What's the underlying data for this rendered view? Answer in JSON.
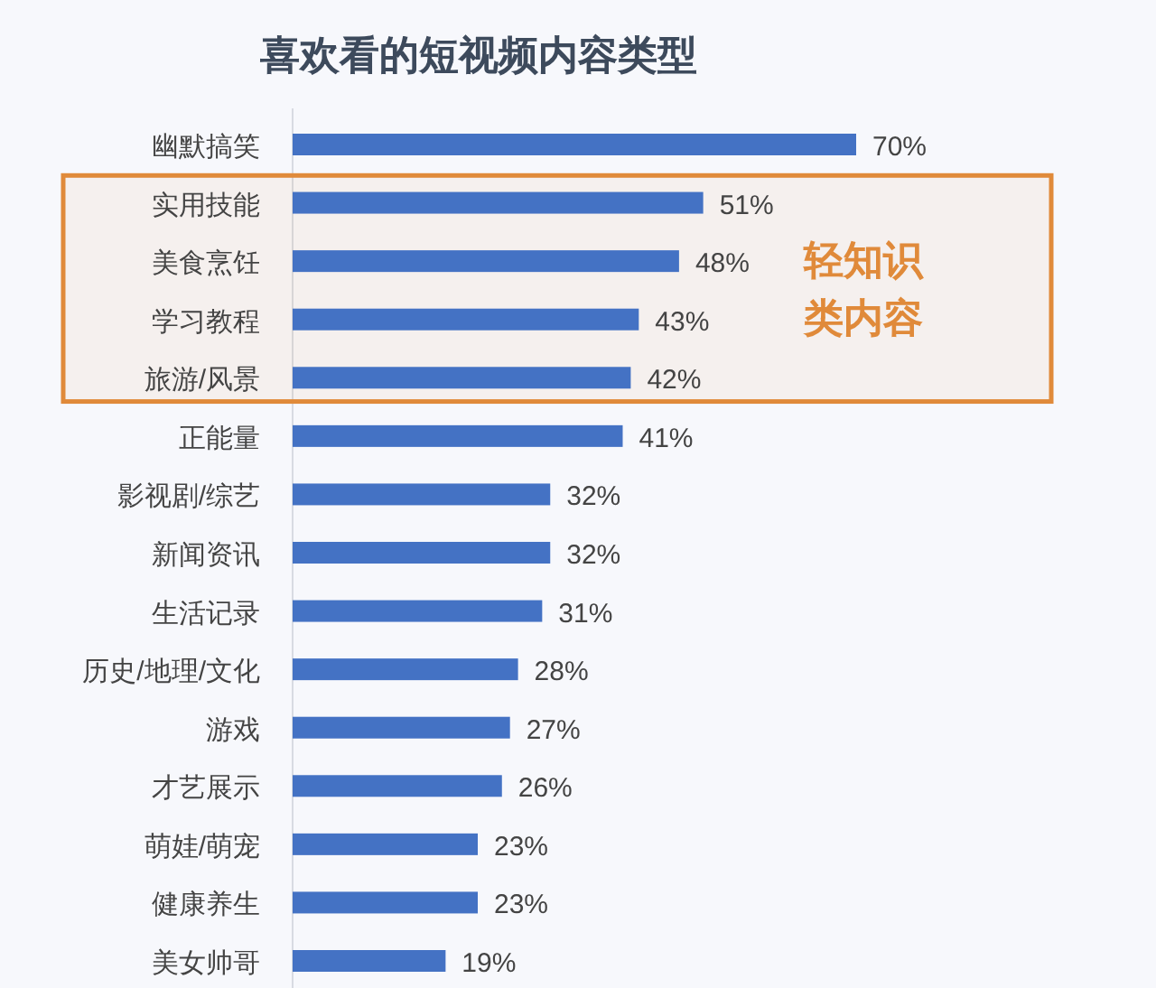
{
  "chart_data": {
    "type": "bar",
    "orientation": "horizontal",
    "title": "喜欢看的短视频内容类型",
    "categories": [
      "幽默搞笑",
      "实用技能",
      "美食烹饪",
      "学习教程",
      "旅游/风景",
      "正能量",
      "影视剧/综艺",
      "新闻资讯",
      "生活记录",
      "历史/地理/文化",
      "游戏",
      "才艺展示",
      "萌娃/萌宠",
      "健康养生",
      "美女帅哥"
    ],
    "values": [
      70,
      51,
      48,
      43,
      42,
      41,
      32,
      32,
      31,
      28,
      27,
      26,
      23,
      23,
      19
    ],
    "value_labels": [
      "70%",
      "51%",
      "48%",
      "43%",
      "42%",
      "41%",
      "32%",
      "32%",
      "31%",
      "28%",
      "27%",
      "26%",
      "23%",
      "23%",
      "19%"
    ],
    "color": "#4472c4",
    "bands": [
      {
        "axis": "y",
        "from": "实用技能",
        "to": "旅游/风景",
        "label": "轻知识类内容",
        "color": "#e08a3a"
      }
    ],
    "grid": false
  }
}
